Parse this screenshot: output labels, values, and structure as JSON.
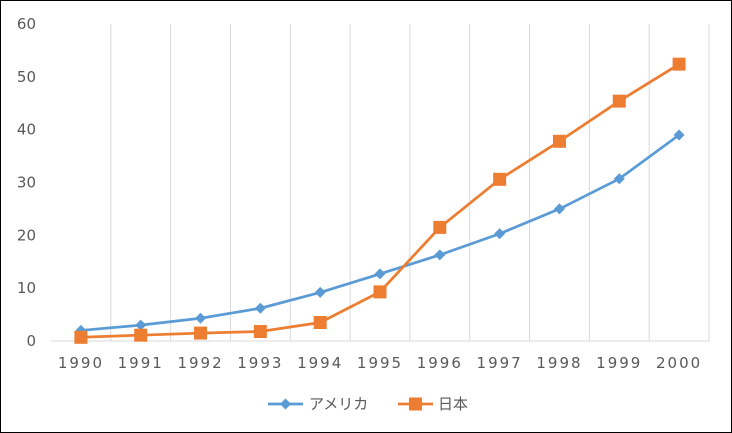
{
  "chart_data": {
    "type": "line",
    "categories": [
      "1990",
      "1991",
      "1992",
      "1993",
      "1994",
      "1995",
      "1996",
      "1997",
      "1998",
      "1999",
      "2000"
    ],
    "series": [
      {
        "name": "アメリカ",
        "color": "#5B9BD5",
        "marker": "diamond",
        "values": [
          2.0,
          3.0,
          4.3,
          6.2,
          9.2,
          12.7,
          16.3,
          20.3,
          25.0,
          30.7,
          39.0
        ]
      },
      {
        "name": "日本",
        "color": "#ED7D31",
        "marker": "square",
        "values": [
          0.7,
          1.1,
          1.5,
          1.8,
          3.5,
          9.3,
          21.5,
          30.6,
          37.8,
          45.4,
          52.4
        ]
      }
    ],
    "yticks": [
      "0",
      "10",
      "20",
      "30",
      "40",
      "50",
      "60"
    ],
    "ylim": [
      0,
      60
    ],
    "title": "",
    "xlabel": "",
    "ylabel": "",
    "grid": "vertical",
    "legend": "bottom"
  }
}
